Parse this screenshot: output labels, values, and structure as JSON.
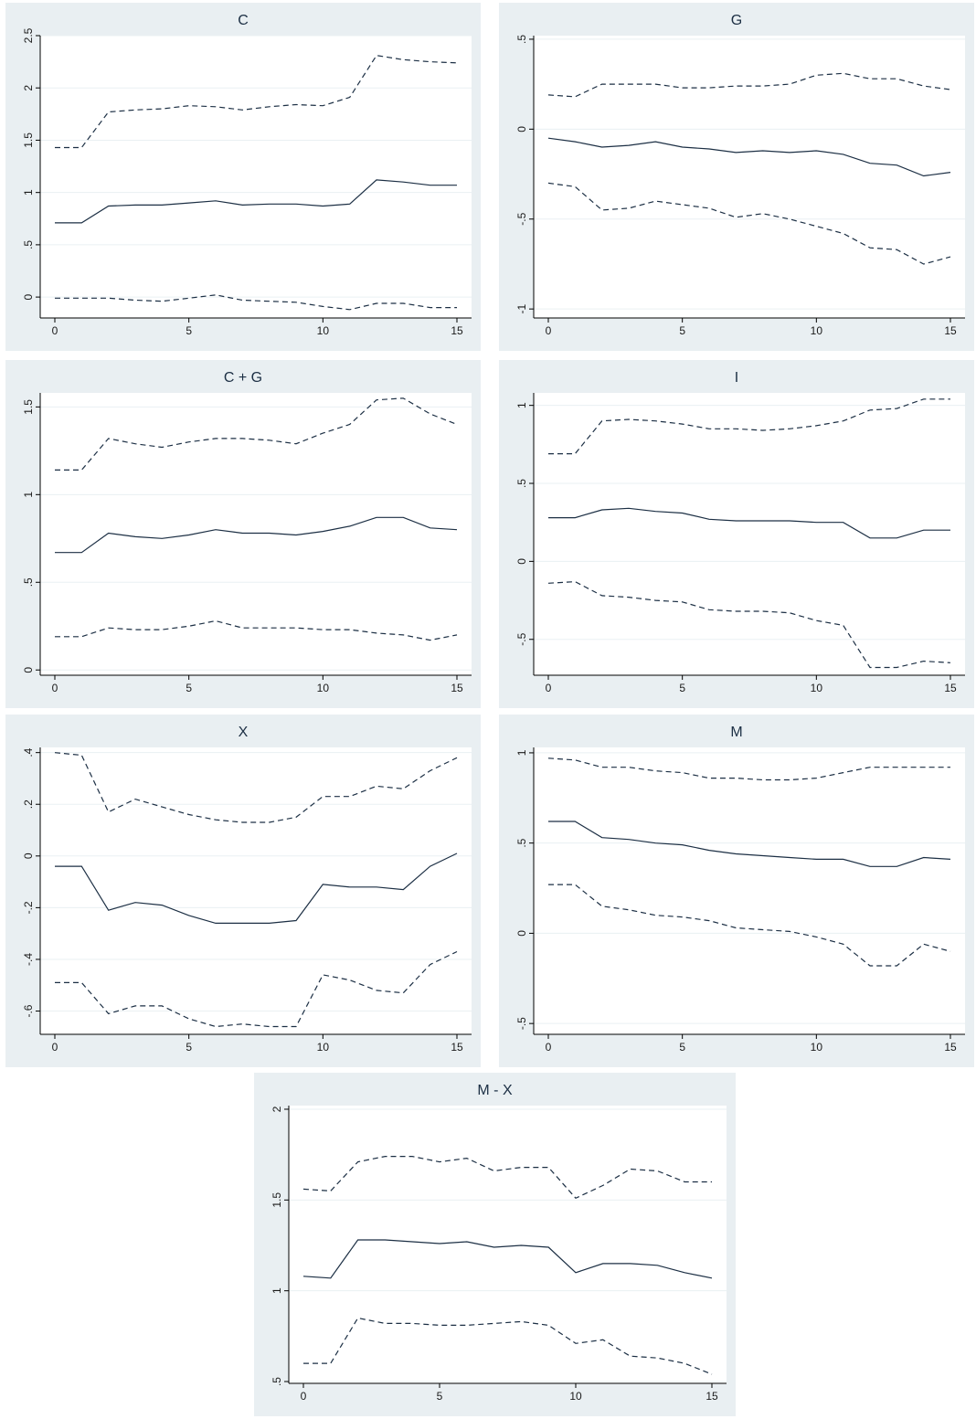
{
  "colors": {
    "panel_background": "#e9eff2",
    "plot_background": "#ffffff",
    "line": "#1c2f44"
  },
  "chart_data": [
    {
      "type": "line",
      "title": "C",
      "x": [
        0,
        1,
        2,
        3,
        4,
        5,
        6,
        7,
        8,
        9,
        10,
        11,
        12,
        13,
        14,
        15
      ],
      "xlim": [
        0,
        15
      ],
      "ylim": [
        -0.2,
        2.5
      ],
      "xticks": [
        0,
        5,
        10,
        15
      ],
      "xtick_labels": [
        "0",
        "5",
        "10",
        "15"
      ],
      "yticks": [
        0,
        0.5,
        1,
        1.5,
        2,
        2.5
      ],
      "ytick_labels": [
        "0",
        ".5",
        "1",
        "1.5",
        "2",
        "2.5"
      ],
      "grid": true,
      "series": [
        {
          "style": "dashed",
          "values": [
            1.43,
            1.43,
            1.77,
            1.79,
            1.8,
            1.83,
            1.82,
            1.79,
            1.82,
            1.84,
            1.83,
            1.91,
            2.31,
            2.27,
            2.25,
            2.24
          ]
        },
        {
          "style": "solid",
          "values": [
            0.71,
            0.71,
            0.87,
            0.88,
            0.88,
            0.9,
            0.92,
            0.88,
            0.89,
            0.89,
            0.87,
            0.89,
            1.12,
            1.1,
            1.07,
            1.07
          ]
        },
        {
          "style": "dashed",
          "values": [
            -0.01,
            -0.01,
            -0.01,
            -0.03,
            -0.04,
            -0.01,
            0.02,
            -0.03,
            -0.04,
            -0.05,
            -0.09,
            -0.12,
            -0.06,
            -0.06,
            -0.1,
            -0.1
          ]
        }
      ]
    },
    {
      "type": "line",
      "title": "G",
      "x": [
        0,
        1,
        2,
        3,
        4,
        5,
        6,
        7,
        8,
        9,
        10,
        11,
        12,
        13,
        14,
        15
      ],
      "xlim": [
        0,
        15
      ],
      "ylim": [
        -1.05,
        0.52
      ],
      "xticks": [
        0,
        5,
        10,
        15
      ],
      "xtick_labels": [
        "0",
        "5",
        "10",
        "15"
      ],
      "yticks": [
        -1,
        -0.5,
        0,
        0.5
      ],
      "ytick_labels": [
        "-1",
        "-.5",
        "0",
        ".5"
      ],
      "grid": true,
      "series": [
        {
          "style": "dashed",
          "values": [
            0.19,
            0.18,
            0.25,
            0.25,
            0.25,
            0.23,
            0.23,
            0.24,
            0.24,
            0.25,
            0.3,
            0.31,
            0.28,
            0.28,
            0.24,
            0.22
          ]
        },
        {
          "style": "solid",
          "values": [
            -0.05,
            -0.07,
            -0.1,
            -0.09,
            -0.07,
            -0.1,
            -0.11,
            -0.13,
            -0.12,
            -0.13,
            -0.12,
            -0.14,
            -0.19,
            -0.2,
            -0.26,
            -0.24
          ]
        },
        {
          "style": "dashed",
          "values": [
            -0.3,
            -0.32,
            -0.45,
            -0.44,
            -0.4,
            -0.42,
            -0.44,
            -0.49,
            -0.47,
            -0.5,
            -0.54,
            -0.58,
            -0.66,
            -0.67,
            -0.75,
            -0.71
          ]
        }
      ]
    },
    {
      "type": "line",
      "title": "C + G",
      "x": [
        0,
        1,
        2,
        3,
        4,
        5,
        6,
        7,
        8,
        9,
        10,
        11,
        12,
        13,
        14,
        15
      ],
      "xlim": [
        0,
        15
      ],
      "ylim": [
        -0.03,
        1.58
      ],
      "xticks": [
        0,
        5,
        10,
        15
      ],
      "xtick_labels": [
        "0",
        "5",
        "10",
        "15"
      ],
      "yticks": [
        0,
        0.5,
        1,
        1.5
      ],
      "ytick_labels": [
        "0",
        ".5",
        "1",
        "1.5"
      ],
      "grid": true,
      "series": [
        {
          "style": "dashed",
          "values": [
            1.14,
            1.14,
            1.32,
            1.29,
            1.27,
            1.3,
            1.32,
            1.32,
            1.31,
            1.29,
            1.35,
            1.4,
            1.54,
            1.55,
            1.46,
            1.4
          ]
        },
        {
          "style": "solid",
          "values": [
            0.67,
            0.67,
            0.78,
            0.76,
            0.75,
            0.77,
            0.8,
            0.78,
            0.78,
            0.77,
            0.79,
            0.82,
            0.87,
            0.87,
            0.81,
            0.8
          ]
        },
        {
          "style": "dashed",
          "values": [
            0.19,
            0.19,
            0.24,
            0.23,
            0.23,
            0.25,
            0.28,
            0.24,
            0.24,
            0.24,
            0.23,
            0.23,
            0.21,
            0.2,
            0.17,
            0.2
          ]
        }
      ]
    },
    {
      "type": "line",
      "title": "I",
      "x": [
        0,
        1,
        2,
        3,
        4,
        5,
        6,
        7,
        8,
        9,
        10,
        11,
        12,
        13,
        14,
        15
      ],
      "xlim": [
        0,
        15
      ],
      "ylim": [
        -0.73,
        1.08
      ],
      "xticks": [
        0,
        5,
        10,
        15
      ],
      "xtick_labels": [
        "0",
        "5",
        "10",
        "15"
      ],
      "yticks": [
        -0.5,
        0,
        0.5,
        1
      ],
      "ytick_labels": [
        "-.5",
        "0",
        ".5",
        "1"
      ],
      "grid": true,
      "series": [
        {
          "style": "dashed",
          "values": [
            0.69,
            0.69,
            0.9,
            0.91,
            0.9,
            0.88,
            0.85,
            0.85,
            0.84,
            0.85,
            0.87,
            0.9,
            0.97,
            0.98,
            1.04,
            1.04
          ]
        },
        {
          "style": "solid",
          "values": [
            0.28,
            0.28,
            0.33,
            0.34,
            0.32,
            0.31,
            0.27,
            0.26,
            0.26,
            0.26,
            0.25,
            0.25,
            0.15,
            0.15,
            0.2,
            0.2
          ]
        },
        {
          "style": "dashed",
          "values": [
            -0.14,
            -0.13,
            -0.22,
            -0.23,
            -0.25,
            -0.26,
            -0.31,
            -0.32,
            -0.32,
            -0.33,
            -0.38,
            -0.41,
            -0.68,
            -0.68,
            -0.64,
            -0.65
          ]
        }
      ]
    },
    {
      "type": "line",
      "title": "X",
      "x": [
        0,
        1,
        2,
        3,
        4,
        5,
        6,
        7,
        8,
        9,
        10,
        11,
        12,
        13,
        14,
        15
      ],
      "xlim": [
        0,
        15
      ],
      "ylim": [
        -0.69,
        0.42
      ],
      "xticks": [
        0,
        5,
        10,
        15
      ],
      "xtick_labels": [
        "0",
        "5",
        "10",
        "15"
      ],
      "yticks": [
        -0.6,
        -0.4,
        -0.2,
        0,
        0.2,
        0.4
      ],
      "ytick_labels": [
        "-.6",
        "-.4",
        "-.2",
        "0",
        ".2",
        ".4"
      ],
      "grid": true,
      "series": [
        {
          "style": "dashed",
          "values": [
            0.4,
            0.39,
            0.17,
            0.22,
            0.19,
            0.16,
            0.14,
            0.13,
            0.13,
            0.15,
            0.23,
            0.23,
            0.27,
            0.26,
            0.33,
            0.38
          ]
        },
        {
          "style": "solid",
          "values": [
            -0.04,
            -0.04,
            -0.21,
            -0.18,
            -0.19,
            -0.23,
            -0.26,
            -0.26,
            -0.26,
            -0.25,
            -0.11,
            -0.12,
            -0.12,
            -0.13,
            -0.04,
            0.01
          ]
        },
        {
          "style": "dashed",
          "values": [
            -0.49,
            -0.49,
            -0.61,
            -0.58,
            -0.58,
            -0.63,
            -0.66,
            -0.65,
            -0.66,
            -0.66,
            -0.46,
            -0.48,
            -0.52,
            -0.53,
            -0.42,
            -0.37
          ]
        }
      ]
    },
    {
      "type": "line",
      "title": "M",
      "x": [
        0,
        1,
        2,
        3,
        4,
        5,
        6,
        7,
        8,
        9,
        10,
        11,
        12,
        13,
        14,
        15
      ],
      "xlim": [
        0,
        15
      ],
      "ylim": [
        -0.56,
        1.03
      ],
      "xticks": [
        0,
        5,
        10,
        15
      ],
      "xtick_labels": [
        "0",
        "5",
        "10",
        "15"
      ],
      "yticks": [
        -0.5,
        0,
        0.5,
        1
      ],
      "ytick_labels": [
        "-.5",
        "0",
        ".5",
        "1"
      ],
      "grid": true,
      "series": [
        {
          "style": "dashed",
          "values": [
            0.97,
            0.96,
            0.92,
            0.92,
            0.9,
            0.89,
            0.86,
            0.86,
            0.85,
            0.85,
            0.86,
            0.89,
            0.92,
            0.92,
            0.92,
            0.92
          ]
        },
        {
          "style": "solid",
          "values": [
            0.62,
            0.62,
            0.53,
            0.52,
            0.5,
            0.49,
            0.46,
            0.44,
            0.43,
            0.42,
            0.41,
            0.41,
            0.37,
            0.37,
            0.42,
            0.41
          ]
        },
        {
          "style": "dashed",
          "values": [
            0.27,
            0.27,
            0.15,
            0.13,
            0.1,
            0.09,
            0.07,
            0.03,
            0.02,
            0.01,
            -0.02,
            -0.06,
            -0.18,
            -0.18,
            -0.06,
            -0.1
          ]
        }
      ]
    },
    {
      "type": "line",
      "title": "M - X",
      "x": [
        0,
        1,
        2,
        3,
        4,
        5,
        6,
        7,
        8,
        9,
        10,
        11,
        12,
        13,
        14,
        15
      ],
      "xlim": [
        0,
        15
      ],
      "ylim": [
        0.49,
        2.02
      ],
      "xticks": [
        0,
        5,
        10,
        15
      ],
      "xtick_labels": [
        "0",
        "5",
        "10",
        "15"
      ],
      "yticks": [
        0.5,
        1,
        1.5,
        2
      ],
      "ytick_labels": [
        ".5",
        "1",
        "1.5",
        "2"
      ],
      "grid": true,
      "series": [
        {
          "style": "dashed",
          "values": [
            1.56,
            1.55,
            1.71,
            1.74,
            1.74,
            1.71,
            1.73,
            1.66,
            1.68,
            1.68,
            1.51,
            1.58,
            1.67,
            1.66,
            1.6,
            1.6
          ]
        },
        {
          "style": "solid",
          "values": [
            1.08,
            1.07,
            1.28,
            1.28,
            1.27,
            1.26,
            1.27,
            1.24,
            1.25,
            1.24,
            1.1,
            1.15,
            1.15,
            1.14,
            1.1,
            1.07
          ]
        },
        {
          "style": "dashed",
          "values": [
            0.6,
            0.6,
            0.85,
            0.82,
            0.82,
            0.81,
            0.81,
            0.82,
            0.83,
            0.81,
            0.71,
            0.73,
            0.64,
            0.63,
            0.6,
            0.54
          ]
        }
      ]
    }
  ]
}
